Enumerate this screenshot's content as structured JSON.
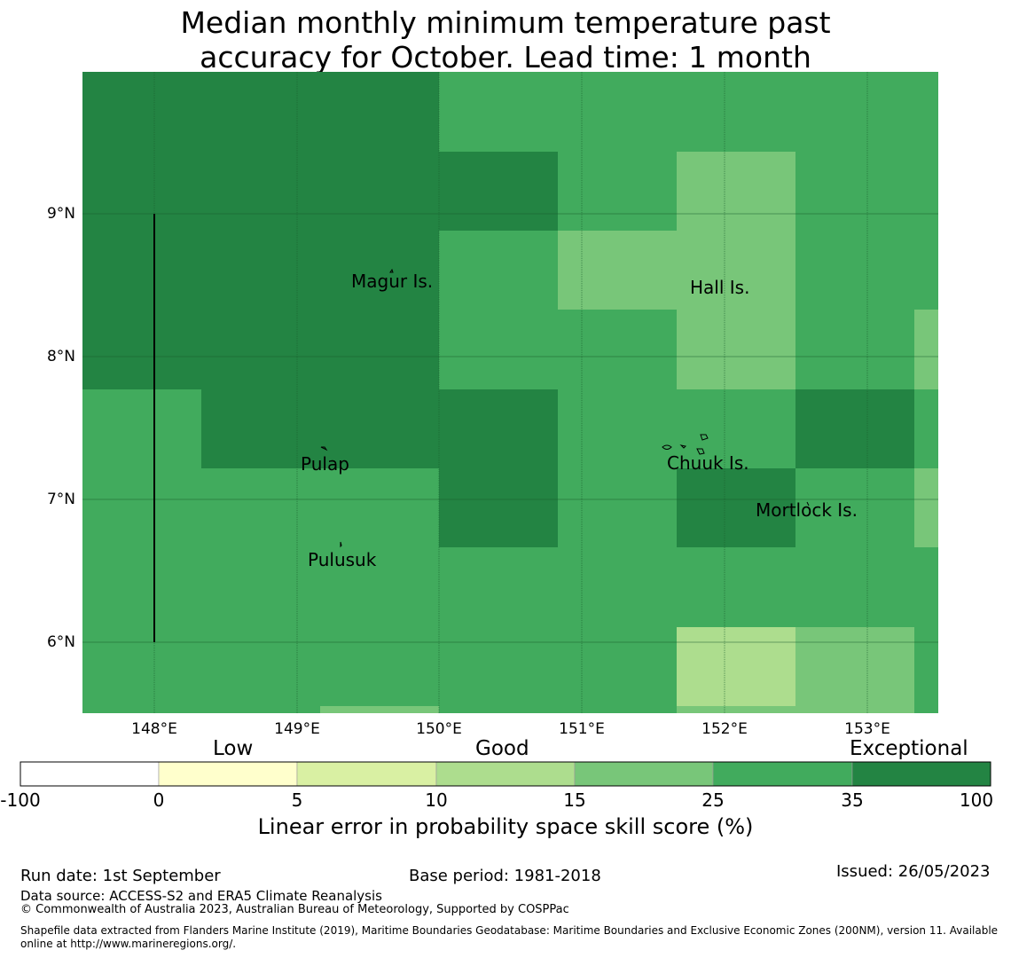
{
  "title_line1": "Median monthly minimum temperature past",
  "title_line2": "accuracy for October. Lead time: 1 month",
  "map": {
    "lon_range": [
      147.5,
      153.5
    ],
    "lat_range": [
      5.5,
      10.0
    ],
    "lat_labels": [
      "9°N",
      "8°N",
      "7°N",
      "6°N"
    ],
    "lon_labels": [
      "148°E",
      "149°E",
      "150°E",
      "151°E",
      "152°E",
      "153°E"
    ],
    "places": [
      {
        "name": "Magur Is.",
        "lon": 149.65,
        "lat": 8.52
      },
      {
        "name": "Hall Is.",
        "lon": 151.98,
        "lat": 8.48
      },
      {
        "name": "Pulap",
        "lon": 149.21,
        "lat": 7.22
      },
      {
        "name": "Chuuk Is.",
        "lon": 151.98,
        "lat": 7.24
      },
      {
        "name": "Mortlock Is.",
        "lon": 152.58,
        "lat": 6.92
      },
      {
        "name": "Pulusuk",
        "lon": 149.33,
        "lat": 6.57
      }
    ]
  },
  "colorbar": {
    "categories": [
      {
        "label": "Low",
        "position": 0.219
      },
      {
        "label": "Good",
        "position": 0.5
      },
      {
        "label": "Exceptional",
        "position": 0.915
      }
    ],
    "ticks": [
      "-100",
      "0",
      "5",
      "10",
      "15",
      "25",
      "35",
      "100"
    ],
    "colors": [
      "#ffffff",
      "#ffffcc",
      "#d9f0a3",
      "#addd8e",
      "#78c679",
      "#41ab5d",
      "#238443"
    ],
    "label": "Linear error in probability space skill score (%)"
  },
  "footer": {
    "run_date": "Run date: 1st September",
    "base_period": "Base period: 1981-2018",
    "issued": "Issued: 26/05/2023",
    "data_source": "Data source: ACCESS-S2 and ERA5 Climate Reanalysis",
    "copyright": "© Commonwealth of Australia 2023, Australian Bureau of Meteorology, Supported by COSPPac",
    "shapefile_line1": "Shapefile data extracted from Flanders Marine Institute (2019), Maritime Boundaries Geodatabase: Maritime Boundaries and Exclusive Economic Zones (200NM), version 11. Available",
    "shapefile_line2": "online at http://www.marineregions.org/."
  }
}
